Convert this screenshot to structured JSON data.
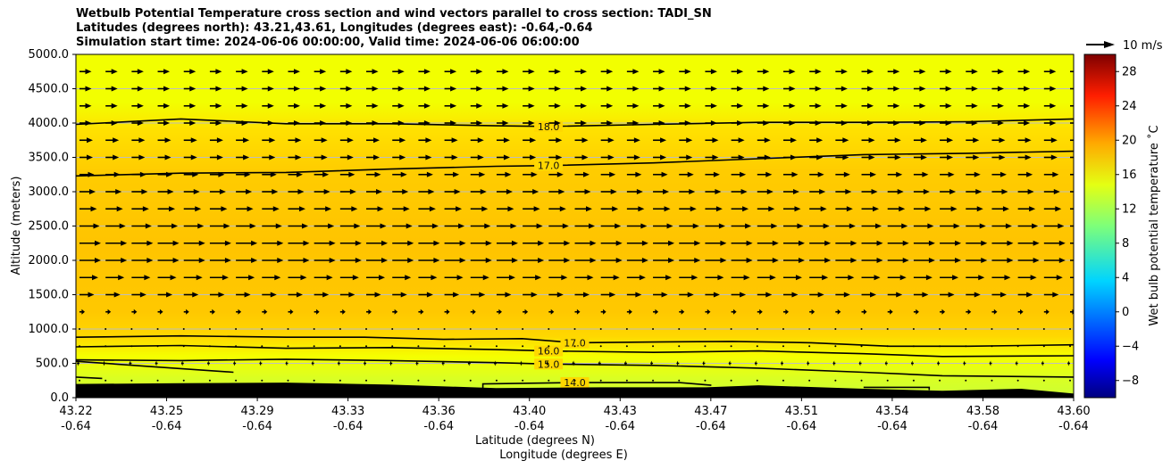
{
  "chart_data": {
    "type": "heatmap",
    "title_lines": [
      "Wetbulb Potential Temperature cross section and wind vectors parallel to cross section: TADI_SN",
      "Latitudes (degrees north): 43.21,43.61, Longitudes (degrees east): -0.64,-0.64",
      "Simulation start time: 2024-06-06 00:00:00, Valid time: 2024-06-06 06:00:00"
    ],
    "ylabel": "Altitude (meters)",
    "xlabel_lines": [
      "Latitude (degrees N)",
      "Longitude (degrees E)"
    ],
    "colorbar_label": "Wet bulb potential temperature ˚C",
    "colorbar_range": [
      -10,
      30
    ],
    "colorbar_ticks": [
      "28",
      "24",
      "20",
      "16",
      "12",
      "8",
      "4",
      "0",
      "−4",
      "−8"
    ],
    "colorbar_tick_values": [
      28,
      24,
      20,
      16,
      12,
      8,
      4,
      0,
      -4,
      -8
    ],
    "quiver_key_label": "10 m/s",
    "ylim": [
      0,
      5000
    ],
    "y_ticks": [
      "0.0",
      "500.0",
      "1000.0",
      "1500.0",
      "2000.0",
      "2500.0",
      "3000.0",
      "3500.0",
      "4000.0",
      "4500.0",
      "5000.0"
    ],
    "y_tick_values": [
      0,
      500,
      1000,
      1500,
      2000,
      2500,
      3000,
      3500,
      4000,
      4500,
      5000
    ],
    "xlim": [
      43.22,
      43.6
    ],
    "x_ticks_lat": [
      "43.22",
      "43.25",
      "43.29",
      "43.33",
      "43.36",
      "43.40",
      "43.43",
      "43.47",
      "43.51",
      "43.54",
      "43.58",
      "43.60"
    ],
    "x_ticks_lon": [
      "-0.64",
      "-0.64",
      "-0.64",
      "-0.64",
      "-0.64",
      "-0.64",
      "-0.64",
      "-0.64",
      "-0.64",
      "-0.64",
      "-0.64",
      "-0.64"
    ],
    "grid": "horizontal",
    "contours": [
      {
        "level": 18.0,
        "label": "18.0",
        "points": [
          [
            43.22,
            3980
          ],
          [
            43.26,
            4060
          ],
          [
            43.3,
            3990
          ],
          [
            43.34,
            3990
          ],
          [
            43.38,
            3960
          ],
          [
            43.4,
            3950
          ],
          [
            43.44,
            3980
          ],
          [
            43.48,
            4010
          ],
          [
            43.52,
            4010
          ],
          [
            43.56,
            4020
          ],
          [
            43.6,
            4060
          ]
        ]
      },
      {
        "level": 17.0,
        "label": "17.0",
        "points": [
          [
            43.22,
            3230
          ],
          [
            43.26,
            3270
          ],
          [
            43.3,
            3280
          ],
          [
            43.34,
            3330
          ],
          [
            43.38,
            3370
          ],
          [
            43.4,
            3380
          ],
          [
            43.44,
            3420
          ],
          [
            43.48,
            3480
          ],
          [
            43.52,
            3540
          ],
          [
            43.56,
            3560
          ],
          [
            43.6,
            3590
          ]
        ]
      },
      {
        "level": 17.0,
        "label": "17.0",
        "points": [
          [
            43.22,
            880
          ],
          [
            43.26,
            900
          ],
          [
            43.3,
            880
          ],
          [
            43.33,
            880
          ],
          [
            43.36,
            850
          ],
          [
            43.39,
            860
          ],
          [
            43.41,
            800
          ],
          [
            43.44,
            810
          ],
          [
            43.47,
            820
          ],
          [
            43.5,
            800
          ],
          [
            43.53,
            750
          ],
          [
            43.56,
            750
          ],
          [
            43.6,
            770
          ]
        ]
      },
      {
        "level": 16.0,
        "label": "16.0",
        "points": [
          [
            43.22,
            740
          ],
          [
            43.26,
            760
          ],
          [
            43.3,
            720
          ],
          [
            43.34,
            730
          ],
          [
            43.38,
            700
          ],
          [
            43.4,
            680
          ],
          [
            43.44,
            660
          ],
          [
            43.48,
            680
          ],
          [
            43.52,
            640
          ],
          [
            43.55,
            600
          ],
          [
            43.6,
            610
          ]
        ]
      },
      {
        "level": 15.0,
        "label": "15.0",
        "points": [
          [
            43.22,
            550
          ],
          [
            43.26,
            540
          ],
          [
            43.3,
            560
          ],
          [
            43.34,
            540
          ],
          [
            43.38,
            510
          ],
          [
            43.4,
            490
          ],
          [
            43.44,
            470
          ],
          [
            43.48,
            430
          ],
          [
            43.52,
            370
          ],
          [
            43.55,
            320
          ],
          [
            43.6,
            300
          ]
        ]
      },
      {
        "level": 14.0,
        "label": "14.0",
        "points": [
          [
            43.22,
            530
          ],
          [
            43.25,
            450
          ],
          [
            43.28,
            370
          ]
        ]
      },
      {
        "level": 14.0,
        "label": "14.0",
        "points": [
          [
            43.22,
            300
          ],
          [
            43.23,
            280
          ]
        ]
      },
      {
        "level": 14.0,
        "label": "14.0",
        "points": [
          [
            43.375,
            140
          ],
          [
            43.375,
            200
          ],
          [
            43.41,
            220
          ],
          [
            43.45,
            220
          ],
          [
            43.462,
            180
          ]
        ]
      },
      {
        "level": 14.0,
        "label": "14.0",
        "points": [
          [
            43.52,
            150
          ],
          [
            43.545,
            150
          ],
          [
            43.545,
            110
          ]
        ]
      }
    ],
    "terrain_top_m": [
      [
        43.22,
        200
      ],
      [
        43.26,
        210
      ],
      [
        43.3,
        220
      ],
      [
        43.34,
        190
      ],
      [
        43.38,
        140
      ],
      [
        43.42,
        150
      ],
      [
        43.46,
        150
      ],
      [
        43.48,
        180
      ],
      [
        43.52,
        130
      ],
      [
        43.55,
        100
      ],
      [
        43.58,
        130
      ],
      [
        43.6,
        60
      ]
    ],
    "wind_vectors": [
      {
        "altitude": 4750,
        "u": 4.5
      },
      {
        "altitude": 4500,
        "u": 4.5
      },
      {
        "altitude": 4250,
        "u": 4.5
      },
      {
        "altitude": 4000,
        "u": 4.5
      },
      {
        "altitude": 3750,
        "u": 5.0
      },
      {
        "altitude": 3500,
        "u": 5.0
      },
      {
        "altitude": 3250,
        "u": 5.5
      },
      {
        "altitude": 3000,
        "u": 6.0
      },
      {
        "altitude": 2750,
        "u": 6.5
      },
      {
        "altitude": 2500,
        "u": 7.5
      },
      {
        "altitude": 2250,
        "u": 8.0
      },
      {
        "altitude": 2000,
        "u": 8.0
      },
      {
        "altitude": 1750,
        "u": 7.0
      },
      {
        "altitude": 1500,
        "u": 5.5
      },
      {
        "altitude": 1250,
        "u": 2.0
      },
      {
        "altitude": 1000,
        "u": 0.3
      },
      {
        "altitude": 750,
        "u": -0.3
      },
      {
        "altitude": 500,
        "u": -1.0
      },
      {
        "altitude": 250,
        "u": 0.2
      }
    ],
    "colors": {
      "top_fill": "#f2ff00",
      "mid_fill": "#ffc800",
      "low_fill": "#f3ff0a",
      "surface_fill": "#ccff33",
      "terrain": "#000000",
      "grid": "#bdbdbd"
    }
  }
}
